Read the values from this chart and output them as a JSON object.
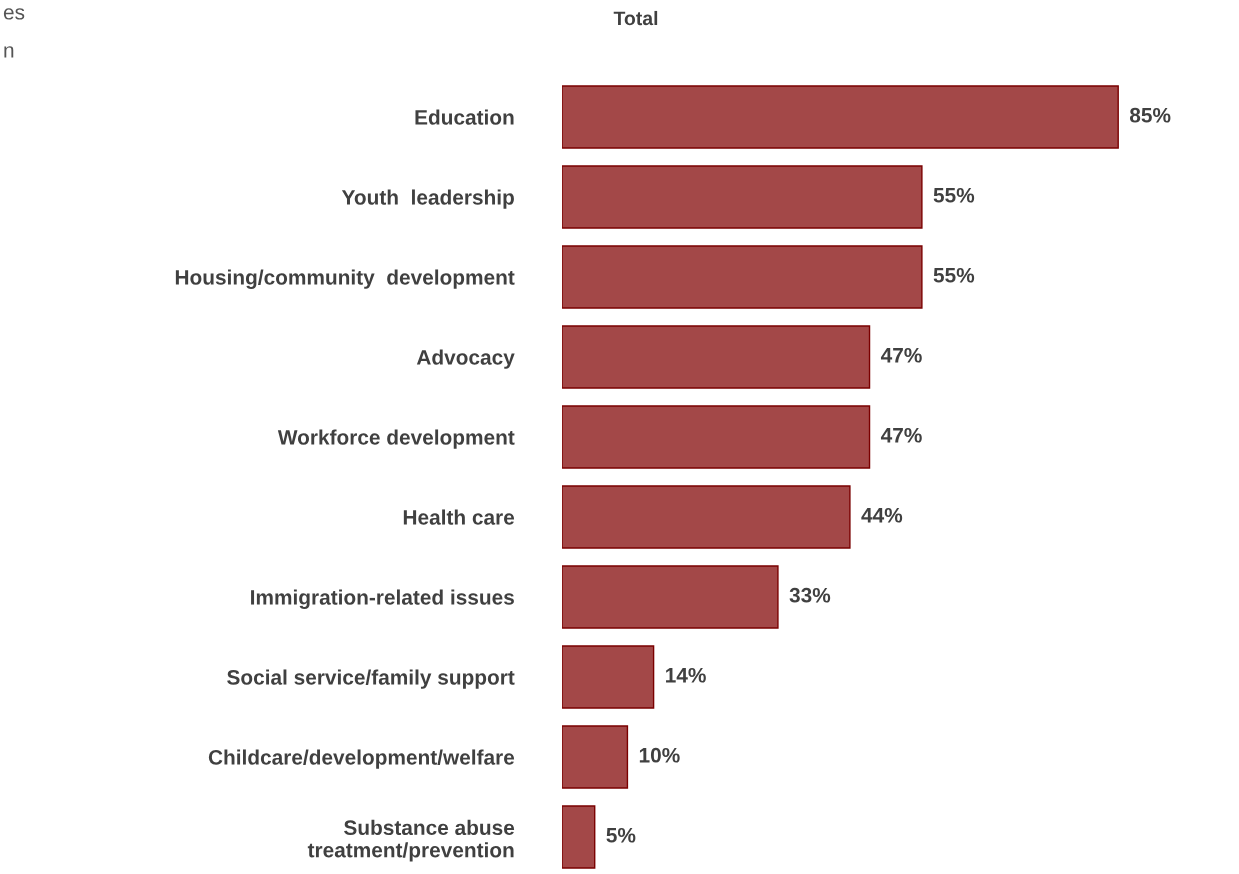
{
  "chart_data": {
    "type": "bar",
    "orientation": "horizontal",
    "title": "Total",
    "categories": [
      "Education",
      "Youth  leadership",
      "Housing/community  development",
      "Advocacy",
      "Workforce development",
      "Health care",
      "Immigration-related issues",
      "Social service/family support",
      "Childcare/development/welfare",
      "Substance abuse\ntreatment/prevention"
    ],
    "values": [
      85,
      55,
      55,
      47,
      47,
      44,
      33,
      14,
      10,
      5
    ],
    "value_labels": [
      "85%",
      "55%",
      "55%",
      "47%",
      "47%",
      "44%",
      "33%",
      "14%",
      "10%",
      "5%"
    ],
    "color": "#a34848",
    "annotations": [
      "es",
      "n"
    ],
    "grid": false,
    "legend": false,
    "tick_labels": "y"
  }
}
